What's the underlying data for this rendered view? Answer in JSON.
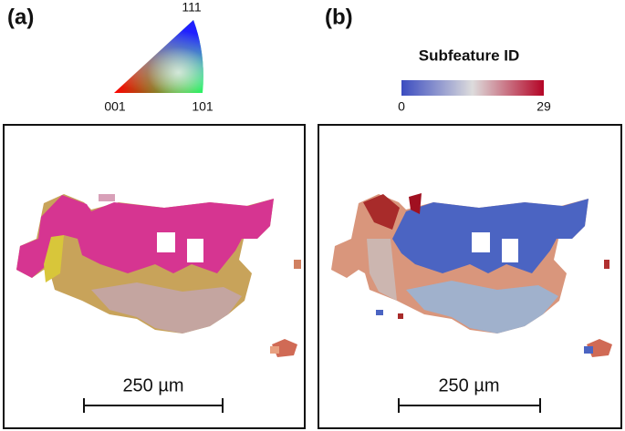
{
  "panel_a": {
    "label": "(a)",
    "ipf_key": {
      "top": "111",
      "left": "001",
      "right": "101"
    },
    "scale_bar": "250 µm"
  },
  "panel_b": {
    "label": "(b)",
    "colorbar": {
      "title": "Subfeature ID",
      "min": 0,
      "max": 29
    },
    "scale_bar": "250 µm"
  }
}
